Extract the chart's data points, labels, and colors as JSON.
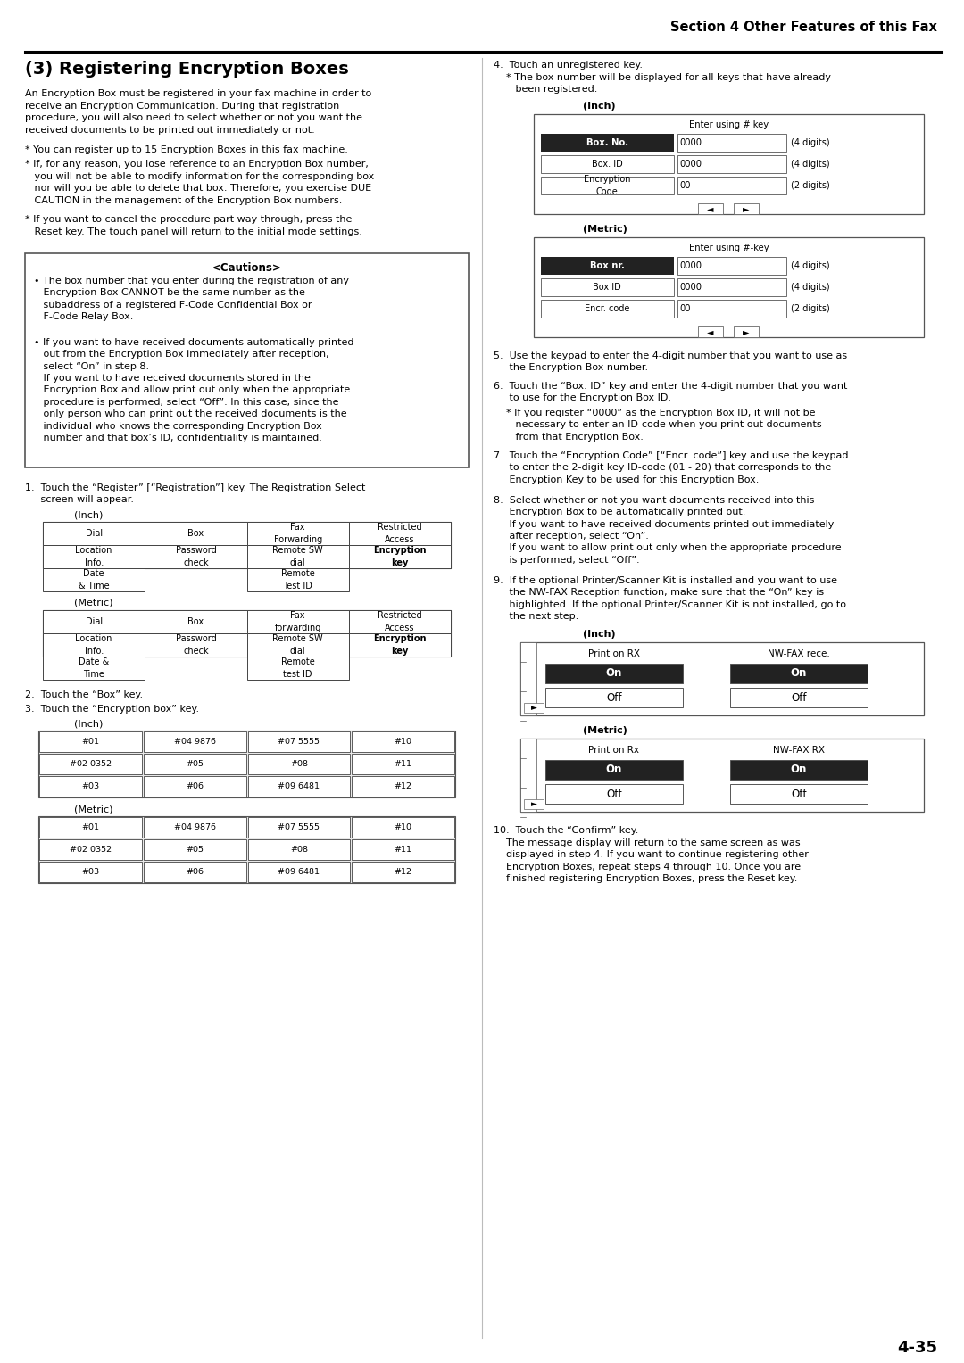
{
  "title_header": "Section 4 Other Features of this Fax",
  "page_number": "4-35",
  "section_title": "(3) Registering Encryption Boxes",
  "background_color": "#ffffff",
  "text_color": "#000000",
  "figsize": [
    10.8,
    15.28
  ],
  "dpi": 100
}
